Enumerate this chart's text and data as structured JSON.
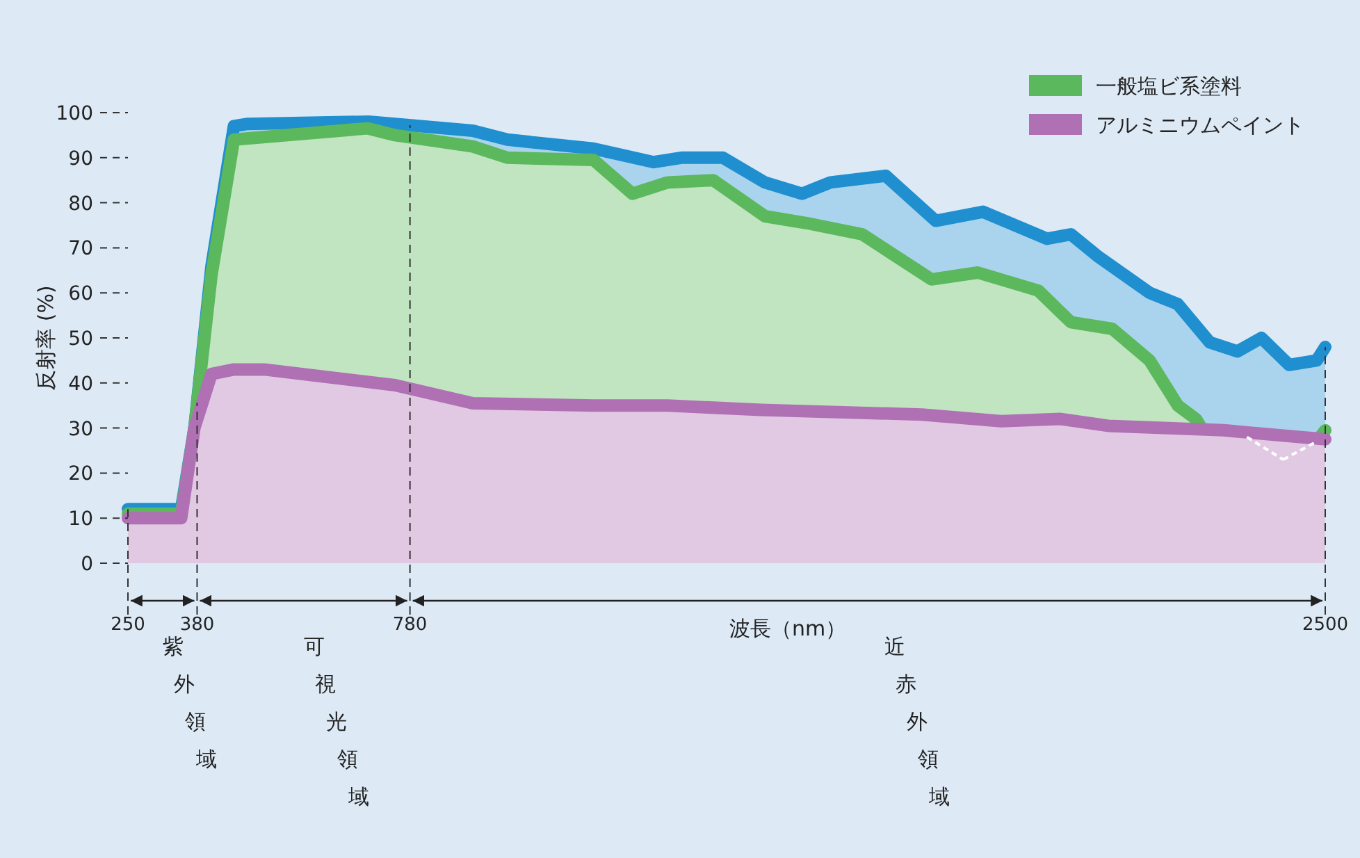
{
  "chart_data": {
    "type": "area",
    "xlabel": "波長（nm）",
    "ylabel": "反射率 (%)",
    "xlim": [
      250,
      2500
    ],
    "ylim": [
      0,
      100
    ],
    "xticks": [
      250,
      380,
      780,
      2500
    ],
    "yticks": [
      0,
      10,
      20,
      30,
      40,
      50,
      60,
      70,
      80,
      90,
      100
    ],
    "legend": "top right",
    "series": [
      {
        "color": "#1f8fcf",
        "x": [
          250,
          350,
          375,
          407,
          449,
          475,
          702,
          752,
          898,
          963,
          1125,
          1238,
          1290,
          1368,
          1447,
          1517,
          1570,
          1674,
          1768,
          1857,
          1977,
          2022,
          2074,
          2170,
          2223,
          2283,
          2335,
          2380,
          2432,
          2484,
          2500
        ],
        "values": [
          12,
          12,
          30,
          66,
          97,
          97.5,
          98,
          97.5,
          96,
          94,
          92,
          89,
          90,
          90,
          84.5,
          82,
          84.5,
          86,
          76,
          78,
          72,
          73,
          68,
          60,
          57.5,
          49,
          47,
          50,
          44,
          45,
          48
        ]
      },
      {
        "name": "一般塩ビ系塗料",
        "color": "#5cb85c",
        "x": [
          250,
          350,
          375,
          407,
          449,
          700,
          752,
          898,
          963,
          1125,
          1198,
          1264,
          1350,
          1447,
          1525,
          1630,
          1760,
          1847,
          1961,
          2022,
          2100,
          2170,
          2223,
          2257,
          2283,
          2353,
          2421,
          2484,
          2500
        ],
        "values": [
          11,
          11,
          30,
          64,
          94,
          96.5,
          95,
          92.5,
          90,
          89.5,
          82,
          84.5,
          85,
          77,
          75.5,
          73,
          63,
          64.5,
          60.5,
          53.5,
          52,
          45,
          35,
          32,
          27,
          28,
          23,
          27,
          29.5
        ]
      },
      {
        "name": "アルミニウムペイント",
        "color": "#b070b4",
        "x": [
          250,
          350,
          375,
          407,
          449,
          506,
          752,
          898,
          1125,
          1264,
          1439,
          1742,
          1891,
          2003,
          2092,
          2309,
          2500
        ],
        "values": [
          10,
          10,
          30,
          42,
          43,
          43,
          39.5,
          35.5,
          35,
          35,
          34,
          33,
          31.5,
          32,
          30.5,
          29.5,
          27.5
        ]
      }
    ],
    "ref_lines": [
      {
        "axis": "x",
        "value": 250,
        "line_style": "dashed"
      },
      {
        "axis": "x",
        "value": 380,
        "line_style": "dashed"
      },
      {
        "axis": "x",
        "value": 780,
        "line_style": "dashed"
      },
      {
        "axis": "x",
        "value": 2500,
        "line_style": "dashed"
      }
    ],
    "annotations": [
      "紫外領域",
      "可視光領域",
      "近赤外領域"
    ]
  }
}
